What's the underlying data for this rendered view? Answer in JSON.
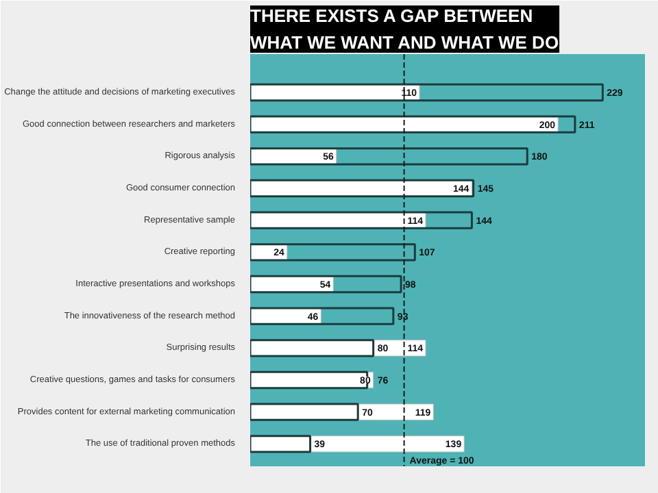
{
  "chart_data": {
    "type": "bar",
    "orientation": "horizontal",
    "title": "THERE EXISTS A GAP BETWEEN\nWHAT WE WANT AND WHAT WE DO",
    "categories": [
      "Change the attitude and decisions of marketing executives",
      "Good connection between researchers and marketers",
      "Rigorous analysis",
      "Good consumer connection",
      "Representative sample",
      "Creative reporting",
      "Interactive presentations and workshops",
      "The innovativeness of the research method",
      "Surprising results",
      "Creative questions, games and tasks for consumers",
      "Provides content for external marketing communication",
      "The use of traditional proven methods"
    ],
    "series": [
      {
        "color": "#ffffff",
        "values": [
          110,
          200,
          56,
          144,
          114,
          24,
          54,
          46,
          114,
          80,
          119,
          139
        ]
      },
      {
        "color": "#1d3b3c",
        "values": [
          229,
          211,
          180,
          145,
          144,
          107,
          98,
          93,
          80,
          76,
          70,
          39
        ]
      }
    ],
    "data_labels": true,
    "grid": false,
    "ref_lines": [
      {
        "axis": "x",
        "value": 100,
        "label": "Average = 100",
        "line_style": "dashed",
        "color": "#1a1a1a"
      }
    ]
  }
}
